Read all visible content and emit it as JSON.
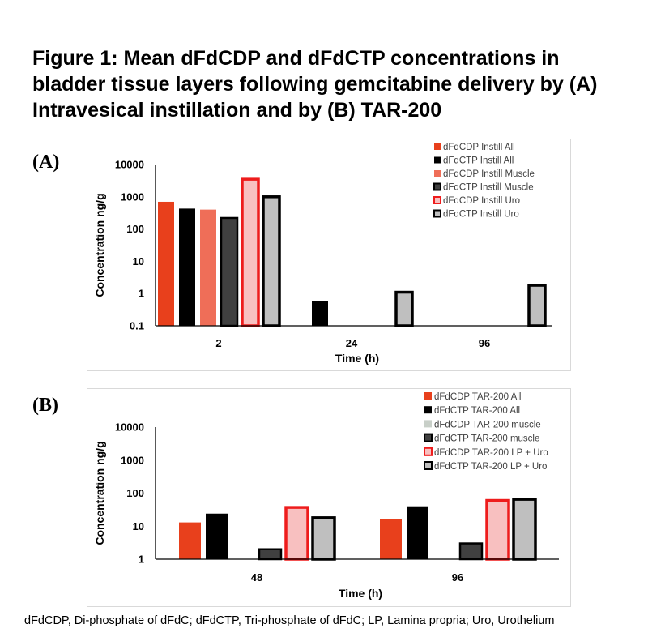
{
  "title": "Figure 1: Mean dFdCDP and dFdCTP concentrations in bladder tissue layers following gemcitabine delivery by (A) Intravesical instillation and by (B) TAR-200",
  "footnote": "dFdCDP, Di-phosphate of dFdC; dFdCTP, Tri-phosphate of dFdC; LP, Lamina propria; Uro, Urothelium",
  "colors": {
    "red": "#e8401c",
    "black": "#000000",
    "salmon": "#ef6e58",
    "dark_gray": "#404040",
    "pink": "#f8c0c0",
    "light_gray": "#bfbfbf",
    "outline_red": "#ee1c1c"
  },
  "chart_data": [
    {
      "id": "A",
      "panel_label": "(A)",
      "type": "bar",
      "scale": "log",
      "categories": [
        "2",
        "24",
        "96"
      ],
      "xlabel": "Time (h)",
      "ylabel": "Concentration ng/g",
      "ylim": [
        0.1,
        10000
      ],
      "yticks": [
        "0.1",
        "1",
        "10",
        "100",
        "1000",
        "10000"
      ],
      "legend_position": "top-right",
      "series": [
        {
          "name": "dFdCDP Instill All",
          "style": "red",
          "values": [
            700,
            null,
            null
          ]
        },
        {
          "name": "dFdCTP Instill All",
          "style": "black",
          "values": [
            430,
            0.6,
            null
          ]
        },
        {
          "name": "dFdCDP Instill Muscle",
          "style": "salmon",
          "values": [
            400,
            null,
            null
          ]
        },
        {
          "name": "dFdCTP Instill Muscle",
          "style": "dark_gray_outlined",
          "values": [
            220,
            null,
            null
          ]
        },
        {
          "name": "dFdCDP Instill Uro",
          "style": "pink_red_outline",
          "values": [
            3500,
            null,
            null
          ]
        },
        {
          "name": "dFdCTP Instill Uro",
          "style": "gray_black_outline",
          "values": [
            1000,
            1.1,
            1.8
          ]
        }
      ]
    },
    {
      "id": "B",
      "panel_label": "(B)",
      "type": "bar",
      "scale": "log",
      "categories": [
        "48",
        "96"
      ],
      "xlabel": "Time (h)",
      "ylabel": "Concentration ng/g",
      "ylim": [
        1,
        10000
      ],
      "yticks": [
        "1",
        "10",
        "100",
        "1000",
        "10000"
      ],
      "legend_position": "top-right",
      "series": [
        {
          "name": "dFdCDP TAR-200 All",
          "style": "red",
          "values": [
            13,
            16
          ]
        },
        {
          "name": "dFdCTP TAR-200 All",
          "style": "black",
          "values": [
            24,
            40
          ]
        },
        {
          "name": "dFdCDP TAR-200 muscle",
          "style": "light_gray_plain",
          "values": [
            null,
            null
          ]
        },
        {
          "name": "dFdCTP TAR-200 muscle",
          "style": "dark_gray_outlined",
          "values": [
            2,
            3
          ]
        },
        {
          "name": "dFdCDP TAR-200 LP + Uro",
          "style": "pink_red_outline",
          "values": [
            37,
            60
          ]
        },
        {
          "name": "dFdCTP TAR-200 LP + Uro",
          "style": "gray_black_outline",
          "values": [
            18,
            65
          ]
        }
      ]
    }
  ]
}
